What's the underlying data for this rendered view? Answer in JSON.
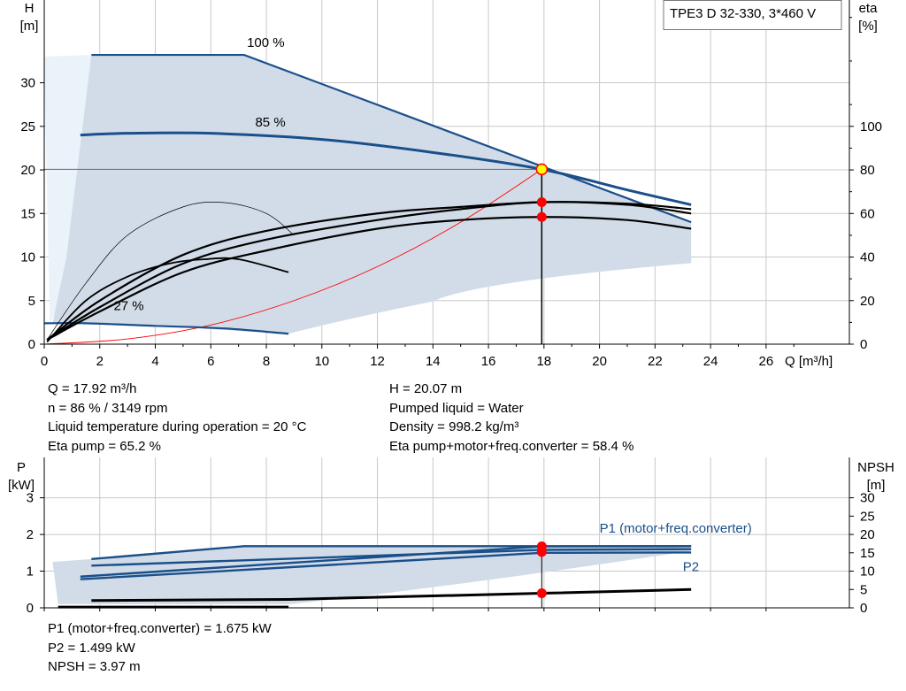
{
  "pump_model": "TPE3 D 32-330, 3*460 V",
  "info_top_left": [
    "Q = 17.92 m³/h",
    "n = 86 % / 3149 rpm",
    "Liquid temperature during operation = 20 °C",
    "Eta pump = 65.2 %"
  ],
  "info_top_right": [
    "H = 20.07 m",
    "Pumped liquid = Water",
    "Density = 998.2 kg/m³",
    "Eta pump+motor+freq.converter = 58.4 %"
  ],
  "info_bottom": [
    "P1 (motor+freq.converter) = 1.675 kW",
    "P2 = 1.499 kW",
    "NPSH = 3.97 m"
  ],
  "colors": {
    "curve_blue": "#1a4f8a",
    "area_fill": "#d2dce8",
    "area_light": "#eaf2fa",
    "grid": "#c8c8c8",
    "operating_point": "#ff0000",
    "duty_marker": "#ffff00"
  },
  "chart_data": [
    {
      "type": "line",
      "title": "",
      "xlabel": "Q [m³/h]",
      "ylabel": "H\n[m]",
      "ylabel_right": "eta\n[%]",
      "x_ticks": [
        0,
        2,
        4,
        6,
        8,
        10,
        12,
        14,
        16,
        18,
        20,
        22,
        24,
        26
      ],
      "xlim": [
        0,
        29
      ],
      "y_ticks": [
        0,
        5,
        10,
        15,
        20,
        25,
        30
      ],
      "ylim": [
        0,
        39.5
      ],
      "y_right_ticks": [
        0,
        20,
        40,
        60,
        80,
        100
      ],
      "y_right_lim": [
        0,
        158
      ],
      "grid": true,
      "series": [
        {
          "name": "100 %",
          "axis": "left",
          "x": [
            1.7,
            7.2,
            23.3
          ],
          "y": [
            33.2,
            33.2,
            14.0
          ]
        },
        {
          "name": "85 %",
          "axis": "left",
          "x": [
            1.3,
            3,
            6,
            10,
            14,
            17.92,
            21,
            23.3
          ],
          "y": [
            24.0,
            24.2,
            24.2,
            23.5,
            22.0,
            20.07,
            17.7,
            16.0
          ]
        },
        {
          "name": "27 %",
          "axis": "left",
          "x": [
            0,
            1.5,
            4,
            6.5,
            8.8
          ],
          "y": [
            2.4,
            2.4,
            2.1,
            1.8,
            1.2
          ]
        },
        {
          "name": "",
          "axis": "right",
          "x": [
            0.1,
            2,
            5,
            8,
            12,
            15,
            17.92,
            21,
            23.3
          ],
          "y": [
            2,
            15,
            33,
            43,
            53,
            57,
            58.4,
            57,
            53
          ]
        },
        {
          "name": "",
          "axis": "right",
          "x": [
            0.1,
            2,
            5,
            8,
            12,
            15,
            17.92,
            21,
            23.3
          ],
          "y": [
            2,
            17,
            37,
            48,
            57,
            62,
            65.2,
            64,
            60
          ]
        },
        {
          "name": "",
          "axis": "right",
          "x": [
            0.1,
            2,
            5,
            8,
            12,
            15,
            17.92,
            21,
            23.3
          ],
          "y": [
            2,
            20,
            41,
            52,
            60,
            63,
            65.2,
            64.5,
            62
          ]
        },
        {
          "name": "",
          "axis": "right",
          "x": [
            0.1,
            1.5,
            3,
            4.5,
            5.8,
            7,
            8.8
          ],
          "y": [
            1,
            20,
            31,
            37,
            39,
            39,
            33
          ]
        },
        {
          "name": "",
          "axis": "right",
          "x": [
            0.1,
            1.5,
            3,
            5,
            6.5,
            8,
            9
          ],
          "y": [
            2,
            28,
            50,
            63,
            65,
            60,
            50
          ]
        }
      ],
      "system_curve": {
        "x": [
          0,
          3,
          6,
          9,
          12,
          15,
          17.92
        ],
        "y": [
          0,
          0.6,
          2.2,
          5.0,
          8.9,
          14.0,
          20.07
        ]
      },
      "area_upper": {
        "x": [
          1.7,
          7.2,
          23.3
        ],
        "y": [
          33.2,
          33.2,
          14.0
        ]
      },
      "area_lower_x": [
        23.3,
        23.3,
        8.8
      ],
      "area_lower_y": [
        14.0,
        9.3,
        1.2
      ],
      "area_left": {
        "x": [
          8.8,
          4,
          1.5,
          0.3
        ],
        "y": [
          1.2,
          2.1,
          2.4,
          2.4
        ]
      },
      "light_area": {
        "x": [
          0,
          1.7,
          1.0,
          0.2
        ],
        "y": [
          33.0,
          33.2,
          7.0,
          2.4
        ]
      },
      "operating_point": {
        "x": 17.92,
        "h": 20.07,
        "eta_pump": 65.2,
        "eta_total": 58.4
      },
      "labels": [
        {
          "text": "100 %",
          "x": 7.3,
          "y": 34.1
        },
        {
          "text": "85 %",
          "x": 7.6,
          "y": 25.0
        },
        {
          "text": "27 %",
          "x": 2.5,
          "y": 3.9
        }
      ]
    },
    {
      "type": "line",
      "title": "",
      "xlabel": "",
      "ylabel": "P\n[kW]",
      "ylabel_right": "NPSH\n[m]",
      "x_ticks": [
        0,
        2,
        4,
        6,
        8,
        10,
        12,
        14,
        16,
        18,
        20,
        22,
        24,
        26
      ],
      "xlim": [
        0,
        29
      ],
      "y_ticks": [
        0,
        1,
        2,
        3
      ],
      "ylim": [
        0,
        4.1
      ],
      "y_right_ticks": [
        0,
        5,
        10,
        15,
        20,
        25,
        30
      ],
      "y_right_lim": [
        0,
        41
      ],
      "grid": true,
      "series": [
        {
          "name": "P1 (motor+freq.converter)",
          "axis": "left",
          "x": [
            1.7,
            7.2,
            23.3
          ],
          "y": [
            1.33,
            1.68,
            1.68
          ]
        },
        {
          "name": "P2",
          "axis": "left",
          "x": [
            1.3,
            17.92,
            23.3
          ],
          "y": [
            0.78,
            1.499,
            1.51
          ]
        },
        {
          "name": "",
          "axis": "left",
          "x": [
            1.3,
            17.92,
            23.3
          ],
          "y": [
            0.85,
            1.675,
            1.68
          ]
        },
        {
          "name": "",
          "axis": "left",
          "x": [
            1.7,
            17.92,
            23.3
          ],
          "y": [
            1.15,
            1.58,
            1.6
          ]
        },
        {
          "name": "",
          "axis": "right",
          "x": [
            1.7,
            8.8,
            17.92,
            23.3
          ],
          "y": [
            2.0,
            2.3,
            3.97,
            5.0
          ]
        },
        {
          "name": "",
          "axis": "right",
          "x": [
            0.5,
            8.8
          ],
          "y": [
            0.2,
            0.2
          ]
        }
      ],
      "area_upper": {
        "x": [
          1.7,
          7.2,
          23.3
        ],
        "y": [
          1.33,
          1.68,
          1.68
        ]
      },
      "area_lower": {
        "x": [
          23.3,
          8.8,
          0.5
        ],
        "y": [
          1.15,
          0.1,
          0.1
        ]
      },
      "operating_point": {
        "x": 17.92,
        "p1": 1.675,
        "p2": 1.499,
        "npsh": 3.97
      },
      "labels": [
        {
          "text": "P1 (motor+freq.converter)",
          "x": 20.0,
          "y": 2.05
        },
        {
          "text": "P2",
          "x": 23.0,
          "y": 1.0
        }
      ]
    }
  ]
}
